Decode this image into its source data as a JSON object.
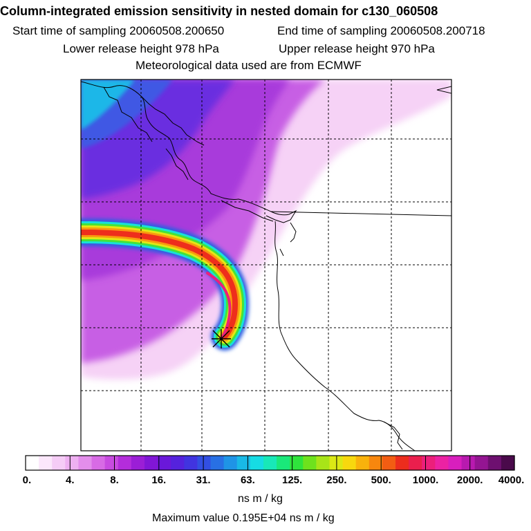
{
  "title": "Column-integrated emission sensitivity in nested domain for c130_060508",
  "sampling": {
    "start": "Start time of sampling 20060508.200650",
    "end": "End time of sampling 20060508.200718"
  },
  "release": {
    "lower": "Lower release height  978 hPa",
    "upper": "Upper release height  970 hPa"
  },
  "met_source": "Meteorological data used are from ECMWF",
  "colorbar": {
    "ticks": [
      "0.",
      "4.",
      "8.",
      "16.",
      "31.",
      "63.",
      "125.",
      "250.",
      "500.",
      "1000.",
      "2000.",
      "4000."
    ],
    "unit": "ns m / kg",
    "colors": [
      "#ffffff",
      "#fbe7fb",
      "#f5ccf6",
      "#eeb0f1",
      "#e38eeb",
      "#d86be5",
      "#c84be0",
      "#b42ddb",
      "#9b1ed6",
      "#8116d6",
      "#6a18da",
      "#5522dd",
      "#4134e0",
      "#324fe2",
      "#2870e4",
      "#1f94e6",
      "#19b9e6",
      "#16dce4",
      "#18e8b8",
      "#1ae87a",
      "#2fe43c",
      "#6ee21d",
      "#a8e418",
      "#dbe815",
      "#f7d80e",
      "#f9b20c",
      "#f7870e",
      "#f25d13",
      "#ec2d1d",
      "#ea1f4d",
      "#ec1f7b",
      "#ec22a3",
      "#d81fbd",
      "#b81aaf",
      "#941592",
      "#6e1070",
      "#4a0a4b"
    ]
  },
  "max_value": "Maximum value  0.195E+04 ns m / kg",
  "release_marker": "release-point"
}
